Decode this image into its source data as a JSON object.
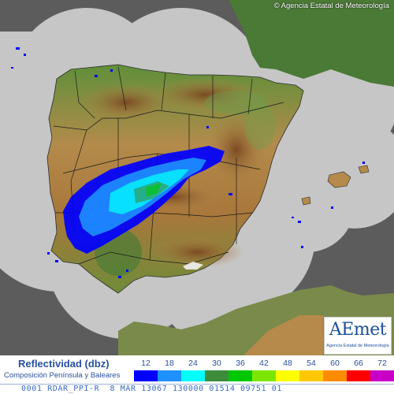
{
  "copyright": "© Agencia Estatal de Meteorología",
  "logo": {
    "text": "AEmet",
    "subtitle": "Agencia Estatal de Meteorología"
  },
  "legend": {
    "title": "Reflectividad (dbz)",
    "subtitle": "Composición Península y Baleares",
    "levels": [
      {
        "value": "12",
        "color": "#0000ff"
      },
      {
        "value": "18",
        "color": "#1e90ff"
      },
      {
        "value": "24",
        "color": "#00ffff"
      },
      {
        "value": "30",
        "color": "#3c8c3c"
      },
      {
        "value": "36",
        "color": "#00c800"
      },
      {
        "value": "42",
        "color": "#7ce600"
      },
      {
        "value": "48",
        "color": "#ffff00"
      },
      {
        "value": "54",
        "color": "#ffc800"
      },
      {
        "value": "60",
        "color": "#ff8c00"
      },
      {
        "value": "66",
        "color": "#ff0000"
      },
      {
        "value": "72",
        "color": "#c800c8"
      }
    ]
  },
  "status_bar": "0001 RDAR_PPI-R  8 MAR 13067 130000 01514 09751 01",
  "colors": {
    "sea_outside": "#5c5c5c",
    "radar_coverage": "#c6c6c6",
    "land_low": "#4e8a3a",
    "land_mid": "#b58a4a",
    "land_high": "#8a5a2e",
    "borders": "#1a1a1a"
  }
}
